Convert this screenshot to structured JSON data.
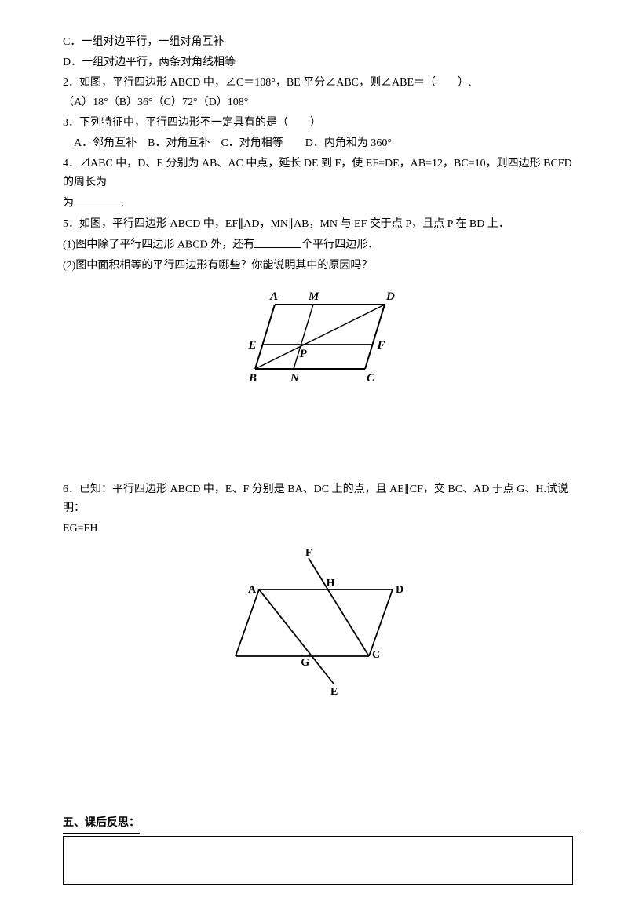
{
  "q1": {
    "optC": "C．一组对边平行，一组对角互补",
    "optD": "D．一组对边平行，两条对角线相等"
  },
  "q2": {
    "stem": "2．如图，平行四边形 ABCD 中，∠C＝108°，BE 平分∠ABC，则∠ABE＝（　　）.",
    "opts": "（A）18°（B）36°（C）72°（D）108°"
  },
  "q3": {
    "stem": "3．下列特征中，平行四边形不一定具有的是（　　）",
    "opts": "　A．邻角互补　B．对角互补　C．对角相等　　D．内角和为 360°"
  },
  "q4": {
    "pre": "4．⊿ABC 中，D、E 分别为 AB、AC 中点，延长 DE 到 F，使 EF=DE，AB=12，BC=10，则四边形 BCFD 的周长为",
    "post": "."
  },
  "q5": {
    "stem": "5．如图，平行四边形 ABCD 中，EF∥AD，MN∥AB，MN 与 EF 交于点 P，且点 P 在 BD 上．",
    "part1pre": " (1)图中除了平行四边形 ABCD 外，还有",
    "part1post": "个平行四边形．",
    "part2": " (2)图中面积相等的平行四边形有哪些？你能说明其中的原因吗？"
  },
  "q6": {
    "line1": "6．已知：平行四边形 ABCD 中，E、F 分别是 BA、DC 上的点，且 AE∥CF，交 BC、AD 于点 G、H.试说明：",
    "line2": "EG=FH"
  },
  "section5": "五、课后反思：",
  "fig1": {
    "labels": {
      "A": "A",
      "M": "M",
      "D": "D",
      "E": "E",
      "P": "P",
      "F": "F",
      "B": "B",
      "N": "N",
      "C": "C"
    },
    "stroke": "#000000",
    "font": "italic bold 15px serif"
  },
  "fig2": {
    "labels": {
      "A": "A",
      "H": "H",
      "D": "D",
      "F": "F",
      "G": "G",
      "C": "C",
      "E": "E"
    },
    "stroke": "#000000",
    "font": "bold 14px serif"
  }
}
